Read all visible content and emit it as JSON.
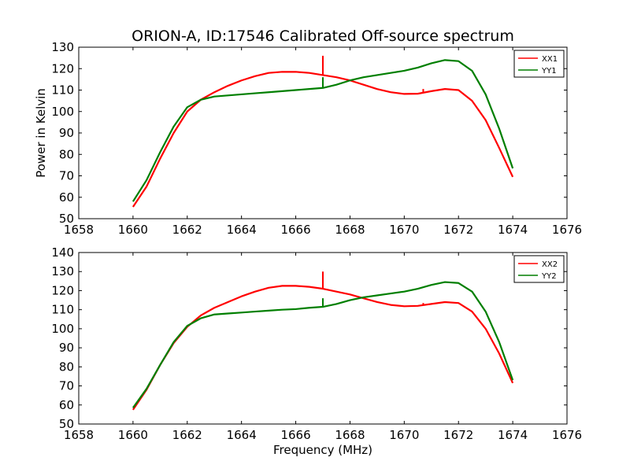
{
  "figure": {
    "title": "ORION-A, ID:17546 Calibrated Off-source spectrum"
  },
  "chart_data": [
    {
      "type": "line",
      "title": "ORION-A, ID:17546 Calibrated Off-source spectrum",
      "xlabel": "",
      "ylabel": "Power in Kelvin",
      "xlim": [
        1658,
        1676
      ],
      "ylim": [
        50,
        130
      ],
      "xticks": [
        1658,
        1660,
        1662,
        1664,
        1666,
        1668,
        1670,
        1672,
        1674,
        1676
      ],
      "yticks": [
        50,
        60,
        70,
        80,
        90,
        100,
        110,
        120,
        130
      ],
      "grid": false,
      "legend_position": "top-right",
      "series": [
        {
          "name": "XX1",
          "color": "#ff0000",
          "x": [
            1660.0,
            1660.5,
            1661.0,
            1661.5,
            1662.0,
            1662.5,
            1663.0,
            1663.5,
            1664.0,
            1664.5,
            1665.0,
            1665.5,
            1666.0,
            1666.5,
            1667.0,
            1667.5,
            1668.0,
            1668.5,
            1669.0,
            1669.5,
            1670.0,
            1670.5,
            1671.0,
            1671.5,
            1672.0,
            1672.5,
            1673.0,
            1673.5,
            1674.0
          ],
          "y": [
            55.5,
            65,
            78,
            90,
            100,
            105.5,
            109,
            112,
            114.5,
            116.5,
            118,
            118.5,
            118.5,
            118,
            117,
            116,
            114.5,
            112.5,
            110.5,
            109,
            108.2,
            108.3,
            109.5,
            110.5,
            110,
            105,
            96,
            83,
            69.5
          ],
          "spikes": [
            {
              "x": 1667.0,
              "y": 126
            },
            {
              "x": 1670.7,
              "y": 110.5
            }
          ]
        },
        {
          "name": "YY1",
          "color": "#007f00",
          "x": [
            1660.0,
            1660.5,
            1661.0,
            1661.5,
            1662.0,
            1662.5,
            1663.0,
            1663.5,
            1664.0,
            1664.5,
            1665.0,
            1665.5,
            1666.0,
            1666.5,
            1667.0,
            1667.5,
            1668.0,
            1668.5,
            1669.0,
            1669.5,
            1670.0,
            1670.5,
            1671.0,
            1671.5,
            1672.0,
            1672.5,
            1673.0,
            1673.5,
            1674.0
          ],
          "y": [
            58,
            68,
            81,
            93,
            102,
            105.5,
            107,
            107.5,
            108,
            108.5,
            109,
            109.5,
            110,
            110.5,
            111,
            112.5,
            114.5,
            116,
            117,
            118,
            119,
            120.5,
            122.5,
            124,
            123.5,
            119,
            108,
            92,
            73.5
          ],
          "spikes": [
            {
              "x": 1667.0,
              "y": 116
            }
          ]
        }
      ]
    },
    {
      "type": "line",
      "title": "",
      "xlabel": "Frequency (MHz)",
      "ylabel": "",
      "xlim": [
        1658,
        1676
      ],
      "ylim": [
        50,
        140
      ],
      "xticks": [
        1658,
        1660,
        1662,
        1664,
        1666,
        1668,
        1670,
        1672,
        1674,
        1676
      ],
      "yticks": [
        50,
        60,
        70,
        80,
        90,
        100,
        110,
        120,
        130,
        140
      ],
      "grid": false,
      "legend_position": "top-right",
      "series": [
        {
          "name": "XX2",
          "color": "#ff0000",
          "x": [
            1660.0,
            1660.5,
            1661.0,
            1661.5,
            1662.0,
            1662.5,
            1663.0,
            1663.5,
            1664.0,
            1664.5,
            1665.0,
            1665.5,
            1666.0,
            1666.5,
            1667.0,
            1667.5,
            1668.0,
            1668.5,
            1669.0,
            1669.5,
            1670.0,
            1670.5,
            1671.0,
            1671.5,
            1672.0,
            1672.5,
            1673.0,
            1673.5,
            1674.0
          ],
          "y": [
            57.5,
            68,
            81,
            92.5,
            101,
            107,
            111,
            114,
            117,
            119.5,
            121.5,
            122.5,
            122.5,
            122,
            121,
            119.5,
            118,
            116,
            114,
            112.5,
            111.8,
            112,
            113,
            114,
            113.5,
            109,
            100,
            87,
            71.5
          ],
          "spikes": [
            {
              "x": 1667.0,
              "y": 130
            },
            {
              "x": 1670.7,
              "y": 113.5
            }
          ]
        },
        {
          "name": "YY2",
          "color": "#007f00",
          "x": [
            1660.0,
            1660.5,
            1661.0,
            1661.5,
            1662.0,
            1662.5,
            1663.0,
            1663.5,
            1664.0,
            1664.5,
            1665.0,
            1665.5,
            1666.0,
            1666.5,
            1667.0,
            1667.5,
            1668.0,
            1668.5,
            1669.0,
            1669.5,
            1670.0,
            1670.5,
            1671.0,
            1671.5,
            1672.0,
            1672.5,
            1673.0,
            1673.5,
            1674.0
          ],
          "y": [
            58.5,
            68.5,
            81,
            93,
            101.5,
            105.5,
            107.5,
            108,
            108.5,
            109,
            109.5,
            110,
            110.3,
            111,
            111.5,
            113,
            115,
            116.5,
            117.5,
            118.5,
            119.5,
            121,
            123,
            124.5,
            124,
            119.5,
            109,
            93,
            73
          ],
          "spikes": [
            {
              "x": 1667.0,
              "y": 116
            }
          ]
        }
      ]
    }
  ]
}
